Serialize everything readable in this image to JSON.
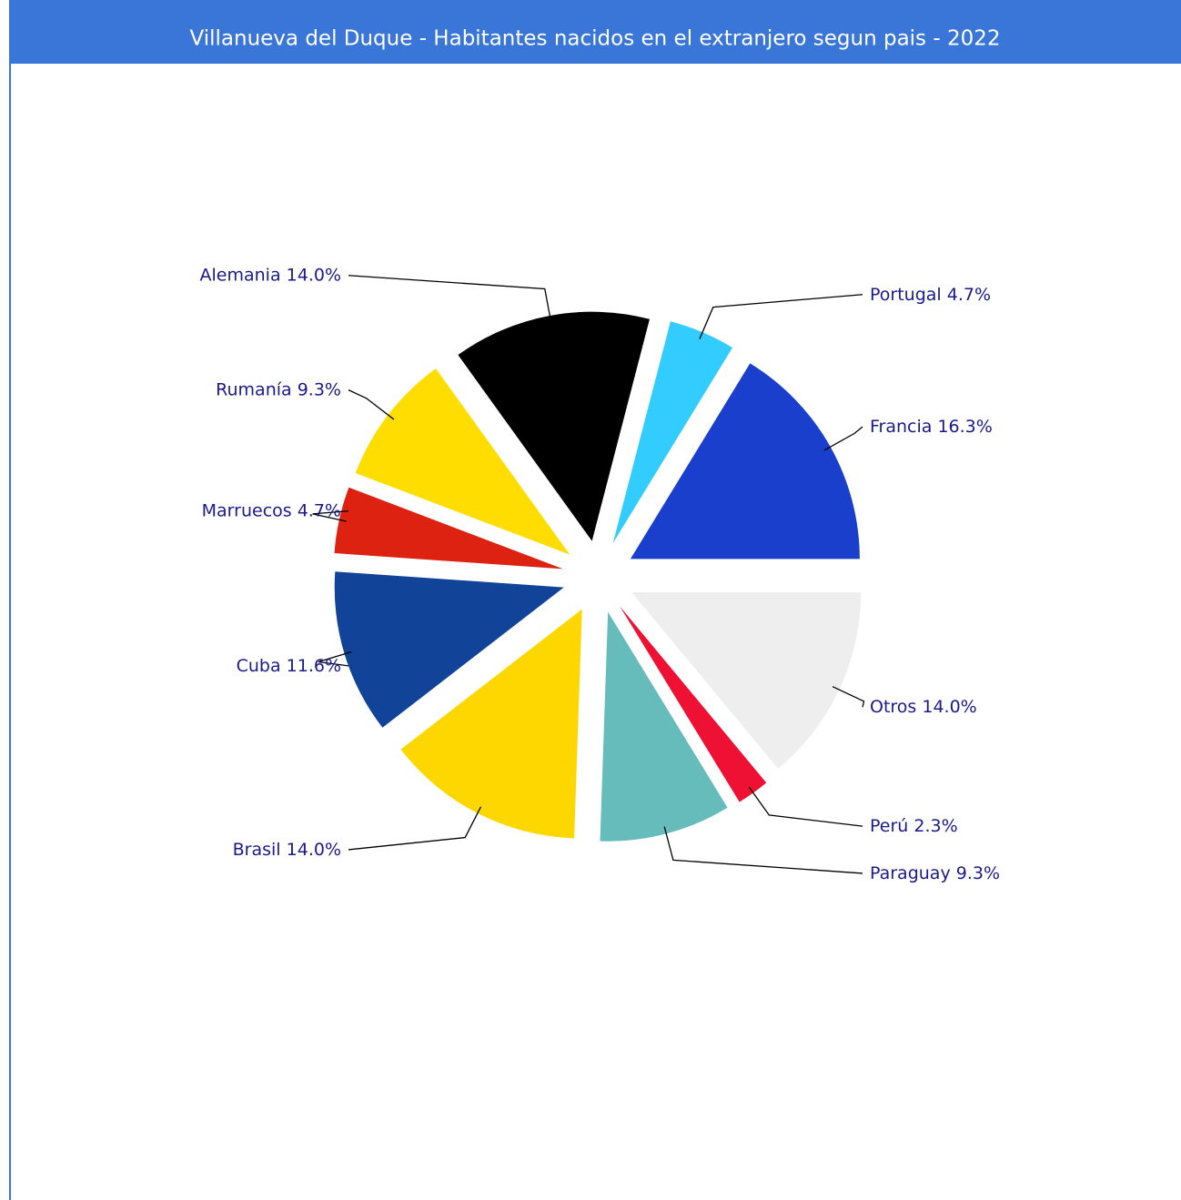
{
  "chart_data": {
    "type": "pie",
    "title": "Villanueva del Duque - Habitantes nacidos en el extranjero segun pais - 2022",
    "categories": [
      "Francia",
      "Portugal",
      "Alemania",
      "Rumanía",
      "Marruecos",
      "Cuba",
      "Brasil",
      "Paraguay",
      "Perú",
      "Otros"
    ],
    "values": [
      16.3,
      4.7,
      14.0,
      9.3,
      4.7,
      11.6,
      14.0,
      9.3,
      2.3,
      14.0
    ],
    "value_labels": [
      "16.3%",
      "4.7%",
      "14.0%",
      "9.3%",
      "4.7%",
      "11.6%",
      "14.0%",
      "9.3%",
      "2.3%",
      "14.0%"
    ],
    "colors": [
      "#1a3fcc",
      "#33ccff",
      "#000000",
      "#ffdd00",
      "#dd2211",
      "#114499",
      "#ffd700",
      "#66bbbb",
      "#ee1133",
      "#eeeeee"
    ]
  }
}
